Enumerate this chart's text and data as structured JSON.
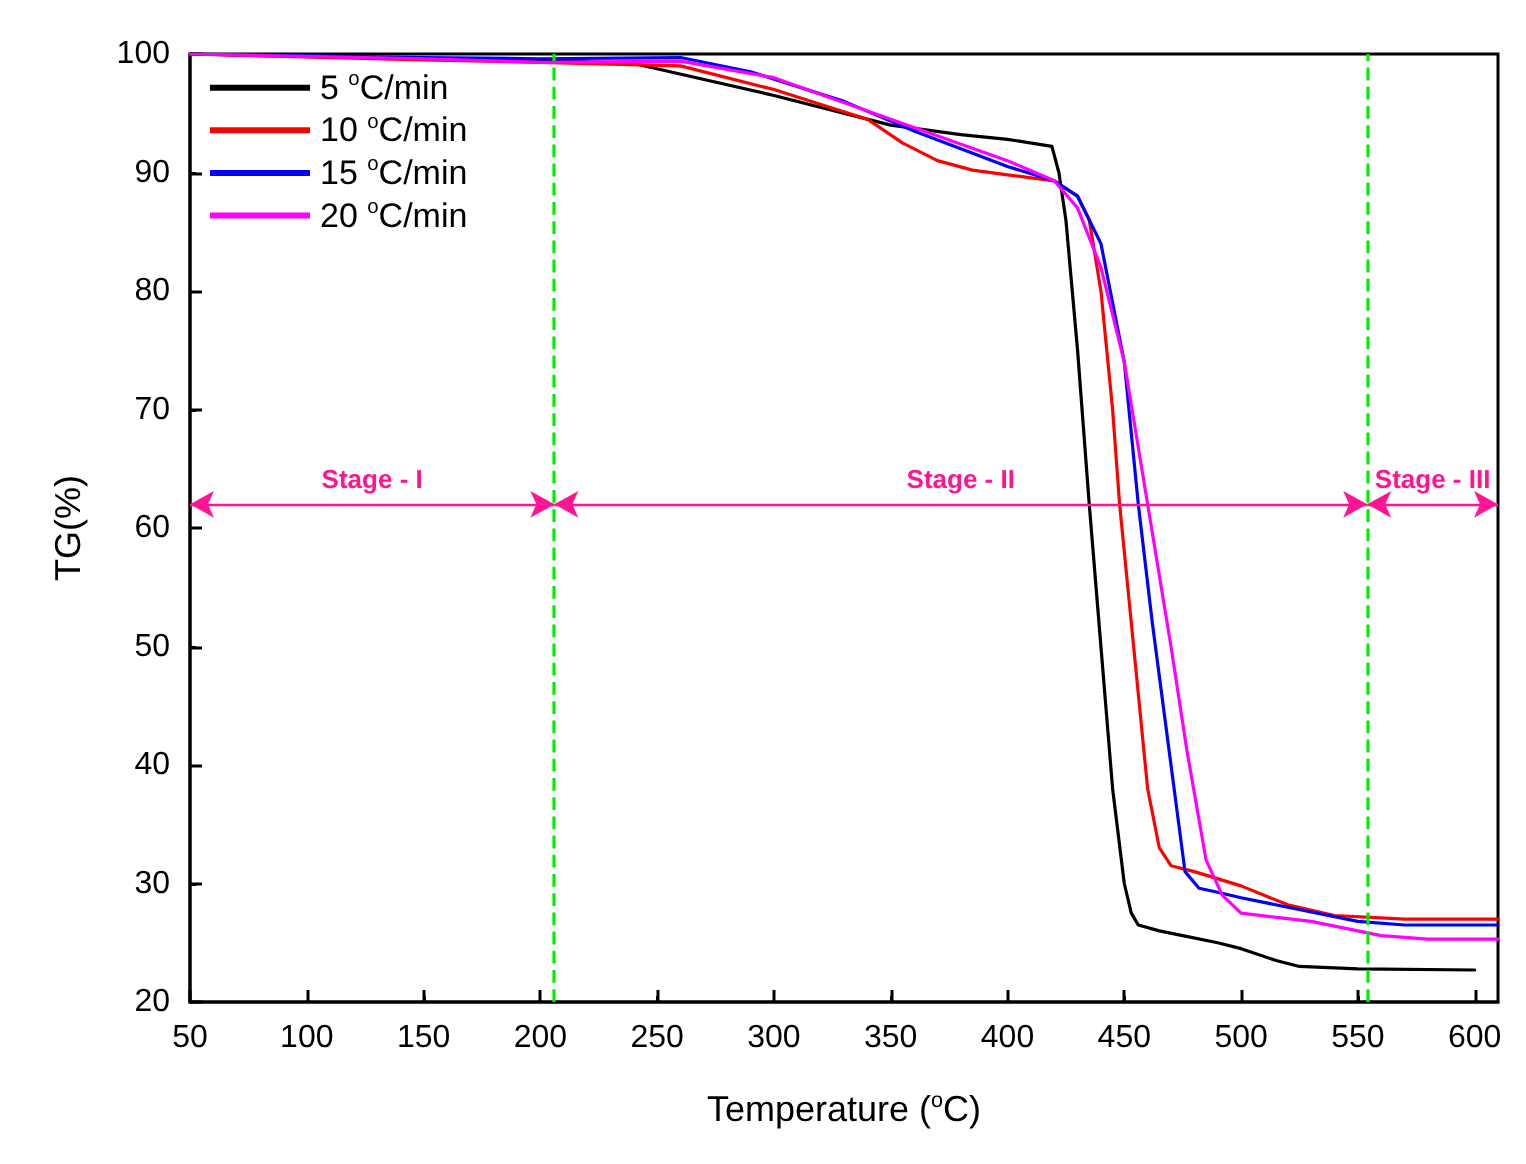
{
  "chart_data": {
    "type": "line",
    "xlabel": "Temperature ($^{o}$C)",
    "ylabel": "TG(%)",
    "xlim": [
      50,
      610
    ],
    "xticks": [
      50,
      100,
      150,
      200,
      250,
      300,
      350,
      400,
      450,
      500,
      550,
      600
    ],
    "ylim": [
      20,
      100
    ],
    "yticks": [
      20,
      30,
      40,
      50,
      60,
      70,
      80,
      90,
      100
    ],
    "grid": false,
    "legend": "top left",
    "marker": "none",
    "line_style": "solid",
    "series": [
      {
        "name": "5 $^{o}$C/min",
        "color": "#000000",
        "x": [
          50,
          150,
          200,
          240,
          300,
          350,
          380,
          400,
          419,
          422,
          425,
          430,
          435,
          440,
          445,
          450,
          453,
          456,
          465,
          475,
          490,
          500,
          515,
          525,
          550,
          600
        ],
        "values": [
          100,
          99.6,
          99.5,
          99.2,
          96.5,
          94,
          93.2,
          92.8,
          92.2,
          90,
          86,
          75,
          62,
          50,
          38,
          30,
          27.5,
          26.5,
          26,
          25.6,
          25,
          24.5,
          23.5,
          23,
          22.8,
          22.7
        ]
      },
      {
        "name": "10 $^{o}$C/min",
        "color": "#ff0000",
        "x": [
          50,
          150,
          200,
          260,
          300,
          340,
          355,
          370,
          385,
          400,
          420,
          430,
          435,
          440,
          445,
          448,
          455,
          460,
          465,
          470,
          480,
          500,
          520,
          540,
          570,
          610
        ],
        "values": [
          100,
          99.5,
          99.3,
          99,
          97,
          94.5,
          92.5,
          91,
          90.2,
          89.8,
          89.3,
          88,
          86,
          80,
          70,
          62,
          48,
          38,
          33,
          31.5,
          31,
          29.8,
          28.2,
          27.3,
          27,
          27
        ]
      },
      {
        "name": "15 $^{o}$C/min",
        "color": "#0000ff",
        "x": [
          50,
          150,
          200,
          260,
          290,
          330,
          360,
          400,
          420,
          430,
          440,
          450,
          456,
          462,
          470,
          476,
          482,
          489,
          500,
          520,
          550,
          570,
          610
        ],
        "values": [
          100,
          99.7,
          99.6,
          99.7,
          98.5,
          96,
          93.5,
          90.5,
          89.3,
          88,
          84,
          74,
          62,
          52,
          40,
          31,
          29.6,
          29.3,
          28.8,
          28,
          26.8,
          26.5,
          26.5
        ]
      },
      {
        "name": "20 $^{o}$C/min",
        "color": "#ff00ff",
        "x": [
          50,
          150,
          200,
          260,
          300,
          350,
          400,
          420,
          430,
          440,
          450,
          460,
          470,
          477,
          485,
          492,
          500,
          530,
          560,
          580,
          610
        ],
        "values": [
          100,
          99.6,
          99.3,
          99.4,
          98,
          94.5,
          91,
          89.3,
          87,
          82,
          74,
          62,
          50,
          41,
          32,
          29,
          27.5,
          26.8,
          25.6,
          25.3,
          25.3
        ]
      }
    ],
    "ref_lines": [
      {
        "axis": "x",
        "value": 206,
        "color": "#00ee00",
        "line_style": "dashed"
      },
      {
        "axis": "x",
        "value": 554,
        "color": "#00ee00",
        "line_style": "dashed"
      }
    ],
    "annotations": [
      "Stage - I",
      "Stage - II",
      "Stage - III"
    ]
  }
}
